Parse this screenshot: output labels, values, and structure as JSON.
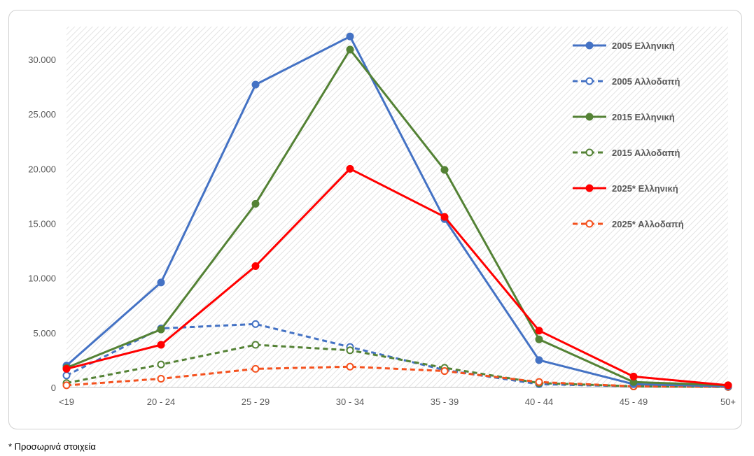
{
  "footnote": "* Προσωρινά στοιχεία",
  "chart_data": {
    "type": "line",
    "title": "",
    "xlabel": "",
    "ylabel": "",
    "categories": [
      "<19",
      "20 - 24",
      "25 - 29",
      "30 - 34",
      "35 - 39",
      "40 - 44",
      "45 - 49",
      "50+"
    ],
    "ylim": [
      0,
      30000
    ],
    "yticks": [
      0,
      5000,
      10000,
      15000,
      20000,
      25000,
      30000
    ],
    "ytick_labels": [
      "0",
      "5.000",
      "10.000",
      "15.000",
      "20.000",
      "25.000",
      "30.000"
    ],
    "grid": false,
    "background": "diagonal-hatch",
    "legend_position": "right",
    "series": [
      {
        "name": "2005 Ελληνική",
        "color": "#4472C4",
        "dashed": false,
        "marker": "filled",
        "values": [
          2000,
          9600,
          27700,
          32100,
          15400,
          2500,
          300,
          100
        ]
      },
      {
        "name": "2005 Αλλοδαπή",
        "color": "#4472C4",
        "dashed": true,
        "marker": "hollow",
        "values": [
          1100,
          5400,
          5800,
          3700,
          1600,
          300,
          100,
          50
        ]
      },
      {
        "name": "2015 Ελληνική",
        "color": "#548235",
        "dashed": false,
        "marker": "filled",
        "values": [
          1800,
          5300,
          16800,
          30900,
          19900,
          4400,
          500,
          200
        ]
      },
      {
        "name": "2015 Αλλοδαπή",
        "color": "#548235",
        "dashed": true,
        "marker": "hollow",
        "values": [
          400,
          2100,
          3900,
          3400,
          1800,
          400,
          100,
          50
        ]
      },
      {
        "name": "2025* Ελληνική",
        "color": "#FF0000",
        "dashed": false,
        "marker": "filled",
        "values": [
          1700,
          3900,
          11100,
          20000,
          15600,
          5200,
          1000,
          200
        ]
      },
      {
        "name": "2025* Αλλοδαπή",
        "color": "#F4511E",
        "dashed": true,
        "marker": "hollow",
        "values": [
          200,
          800,
          1700,
          1900,
          1500,
          500,
          100,
          50
        ]
      }
    ]
  }
}
